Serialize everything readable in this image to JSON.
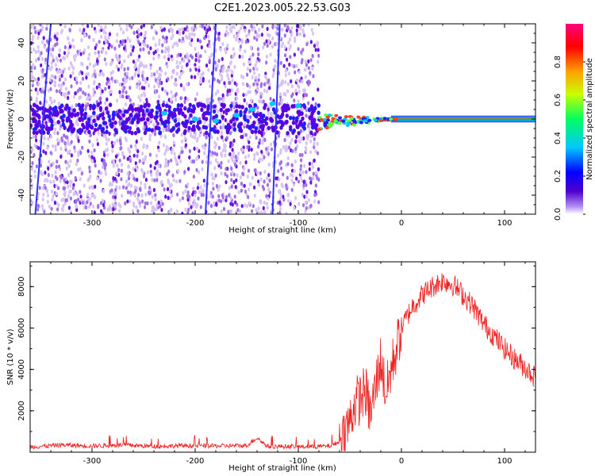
{
  "title": "C2E1.2023.005.22.53.G03",
  "chart_data": [
    {
      "type": "heatmap",
      "xlabel": "Height of straight line (km)",
      "ylabel": "Frequency (Hz)",
      "xlim": [
        -360,
        130
      ],
      "ylim": [
        -50,
        50
      ],
      "x_ticks": [
        -300,
        -200,
        -100,
        0,
        100
      ],
      "y_ticks": [
        -40,
        -20,
        0,
        20,
        40
      ],
      "colorbar": {
        "label": "Normalized spectral amplitude",
        "ticks": [
          "0.0",
          "0.2",
          "0.4",
          "0.6",
          "0.8"
        ],
        "range": [
          0,
          1
        ],
        "colormap": [
          "#ffffff",
          "#a070e0",
          "#5000d0",
          "#0000ff",
          "#00c8ff",
          "#00ff60",
          "#c8ff00",
          "#ffa000",
          "#ff0000",
          "#ff0080"
        ]
      },
      "features": {
        "noise_region_x": [
          -360,
          -80
        ],
        "carrier_line_x": [
          -80,
          130
        ],
        "carrier_frequency": 0,
        "colors": {
          "noise_light": "#d8c4f4",
          "noise_dark": "#6a10e0",
          "line_core": "#ff2020",
          "line_mid": "#00e060",
          "line_edge": "#0030ff"
        }
      }
    },
    {
      "type": "line",
      "xlabel": "Height of straight line (km)",
      "ylabel": "SNR (10 * v/v)",
      "xlim": [
        -360,
        130
      ],
      "ylim": [
        0,
        9200
      ],
      "x_ticks": [
        -300,
        -200,
        -100,
        0,
        100
      ],
      "y_ticks": [
        2000,
        4000,
        6000,
        8000
      ],
      "series": [
        {
          "color": "#ee2020",
          "x": [
            -360,
            -330,
            -300,
            -270,
            -240,
            -210,
            -180,
            -150,
            -140,
            -130,
            -110,
            -90,
            -70,
            -60,
            -50,
            -45,
            -40,
            -35,
            -30,
            -25,
            -20,
            -15,
            -10,
            -5,
            0,
            10,
            20,
            30,
            40,
            50,
            60,
            70,
            80,
            90,
            100,
            110,
            120,
            130
          ],
          "values": [
            250,
            350,
            300,
            350,
            280,
            320,
            300,
            320,
            700,
            280,
            280,
            260,
            300,
            500,
            1500,
            2400,
            2600,
            3000,
            1800,
            3200,
            4500,
            2800,
            4000,
            5000,
            6000,
            7000,
            7600,
            8000,
            8300,
            8100,
            7600,
            7000,
            6200,
            5600,
            5000,
            4500,
            4100,
            3600
          ]
        }
      ]
    }
  ]
}
